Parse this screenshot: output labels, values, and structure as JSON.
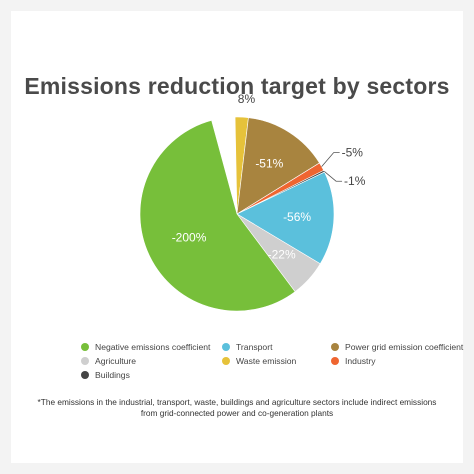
{
  "chart_data": {
    "type": "pie",
    "title": "Emissions reduction target by sectors",
    "slices": [
      {
        "label": "Waste emission",
        "value_label": "8%",
        "share": 0.022,
        "color": "#e6c23a",
        "label_side": "outside-top"
      },
      {
        "label": "Power grid emission coefficient",
        "value_label": "-51%",
        "share": 0.143,
        "color": "#a8843f",
        "label_side": "inside"
      },
      {
        "label": "Industry",
        "value_label": "-5%",
        "share": 0.014,
        "color": "#ef6530",
        "label_side": "outside-right"
      },
      {
        "label": "Buildings",
        "value_label": "-1%",
        "share": 0.003,
        "color": "#444444",
        "label_side": "outside-right"
      },
      {
        "label": "Transport",
        "value_label": "-56%",
        "share": 0.157,
        "color": "#5bc0dc",
        "label_side": "inside"
      },
      {
        "label": "Agriculture",
        "value_label": "-22%",
        "share": 0.062,
        "color": "#cfcfcf",
        "label_side": "inside"
      },
      {
        "label": "Negative emissions coefficient",
        "value_label": "-200%",
        "share": 0.56,
        "color": "#77bf3a",
        "label_side": "inside"
      }
    ],
    "legend": [
      {
        "label": "Negative emissions coefficient",
        "color": "#77bf3a"
      },
      {
        "label": "Transport",
        "color": "#5bc0dc"
      },
      {
        "label": "Power grid emission coefficient",
        "color": "#a8843f"
      },
      {
        "label": "Agriculture",
        "color": "#cfcfcf"
      },
      {
        "label": "Waste emission",
        "color": "#e6c23a"
      },
      {
        "label": "Industry",
        "color": "#ef6530"
      },
      {
        "label": "Buildings",
        "color": "#444444"
      }
    ],
    "legend_placement": "bottom"
  },
  "footnote": "*The emissions in the industrial, transport, waste, buildings and agriculture sectors include indirect emissions from grid-connected power and co-generation plants"
}
